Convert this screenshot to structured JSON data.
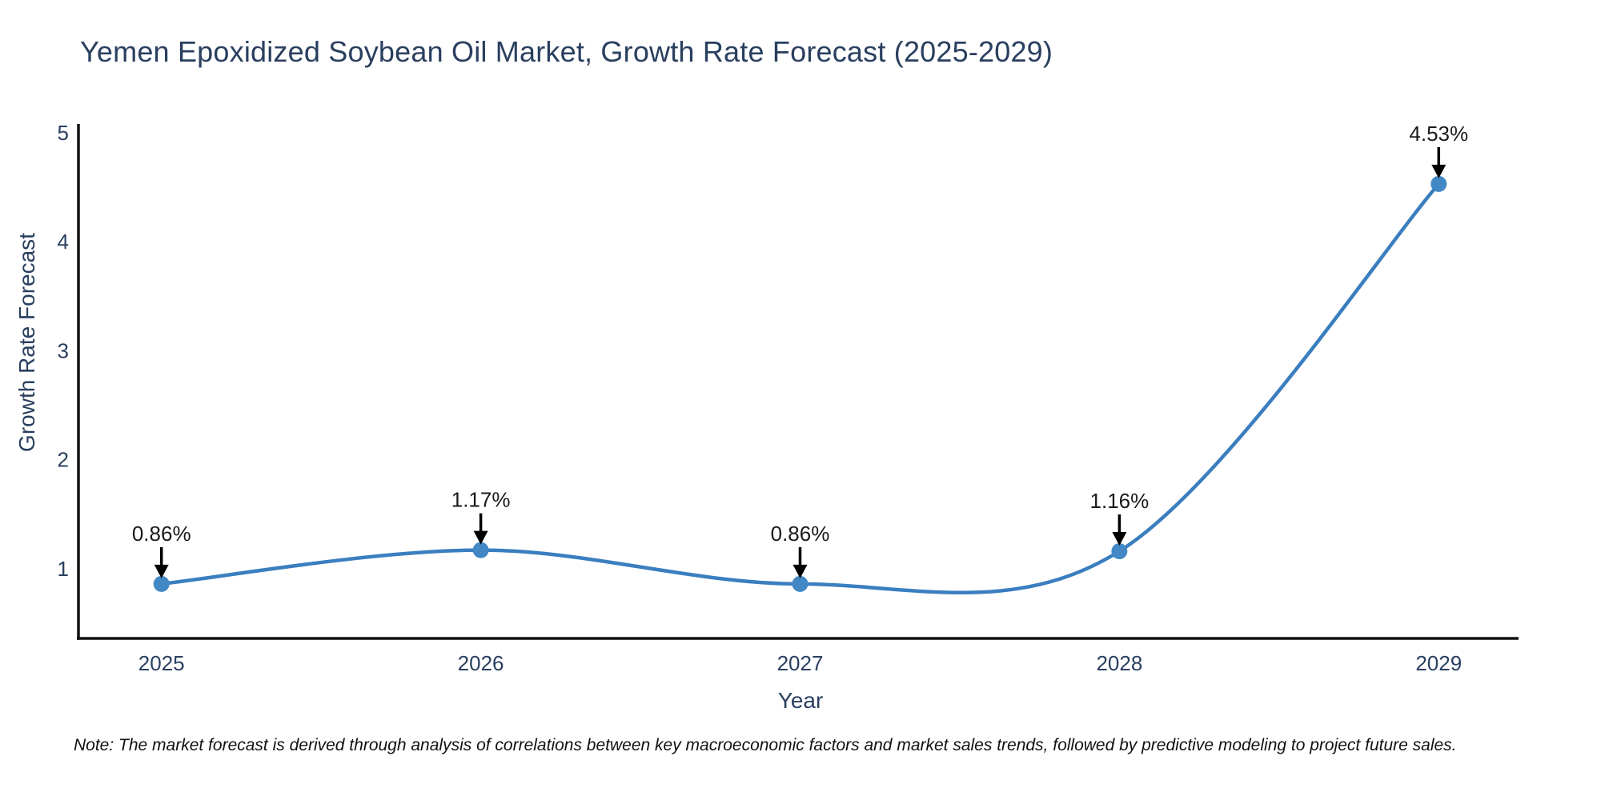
{
  "title": "Yemen Epoxidized Soybean Oil Market, Growth Rate Forecast (2025-2029)",
  "note": "Note: The market forecast is derived through analysis of correlations between key macroeconomic factors and market sales trends, followed by predictive modeling to project future sales.",
  "chart_data": {
    "type": "line",
    "line_shape": "spline",
    "title": "Yemen Epoxidized Soybean Oil Market, Growth Rate Forecast (2025-2029)",
    "xlabel": "Year",
    "ylabel": "Growth Rate Forecast",
    "x": [
      2025,
      2026,
      2027,
      2028,
      2029
    ],
    "values": [
      0.86,
      1.17,
      0.86,
      1.16,
      4.53
    ],
    "point_labels": [
      "0.86%",
      "1.17%",
      "0.86%",
      "1.16%",
      "4.53%"
    ],
    "x_tick_labels": [
      "2025",
      "2026",
      "2027",
      "2028",
      "2029"
    ],
    "y_tick_values": [
      1,
      2,
      3,
      4,
      5
    ],
    "xlim": [
      2024.74,
      2029.25
    ],
    "ylim": [
      0.36,
      5.08
    ],
    "grid": false,
    "legend": "none",
    "annotation_style": "black-down-arrow",
    "colors": {
      "line": "#3a7ebf",
      "marker_fill": "#4288c5",
      "axis_line": "#111111",
      "tick_text": "#2a3f5f",
      "annotation_text": "#1a1a1a",
      "annotation_arrow": "#000000",
      "background": "#ffffff"
    }
  }
}
